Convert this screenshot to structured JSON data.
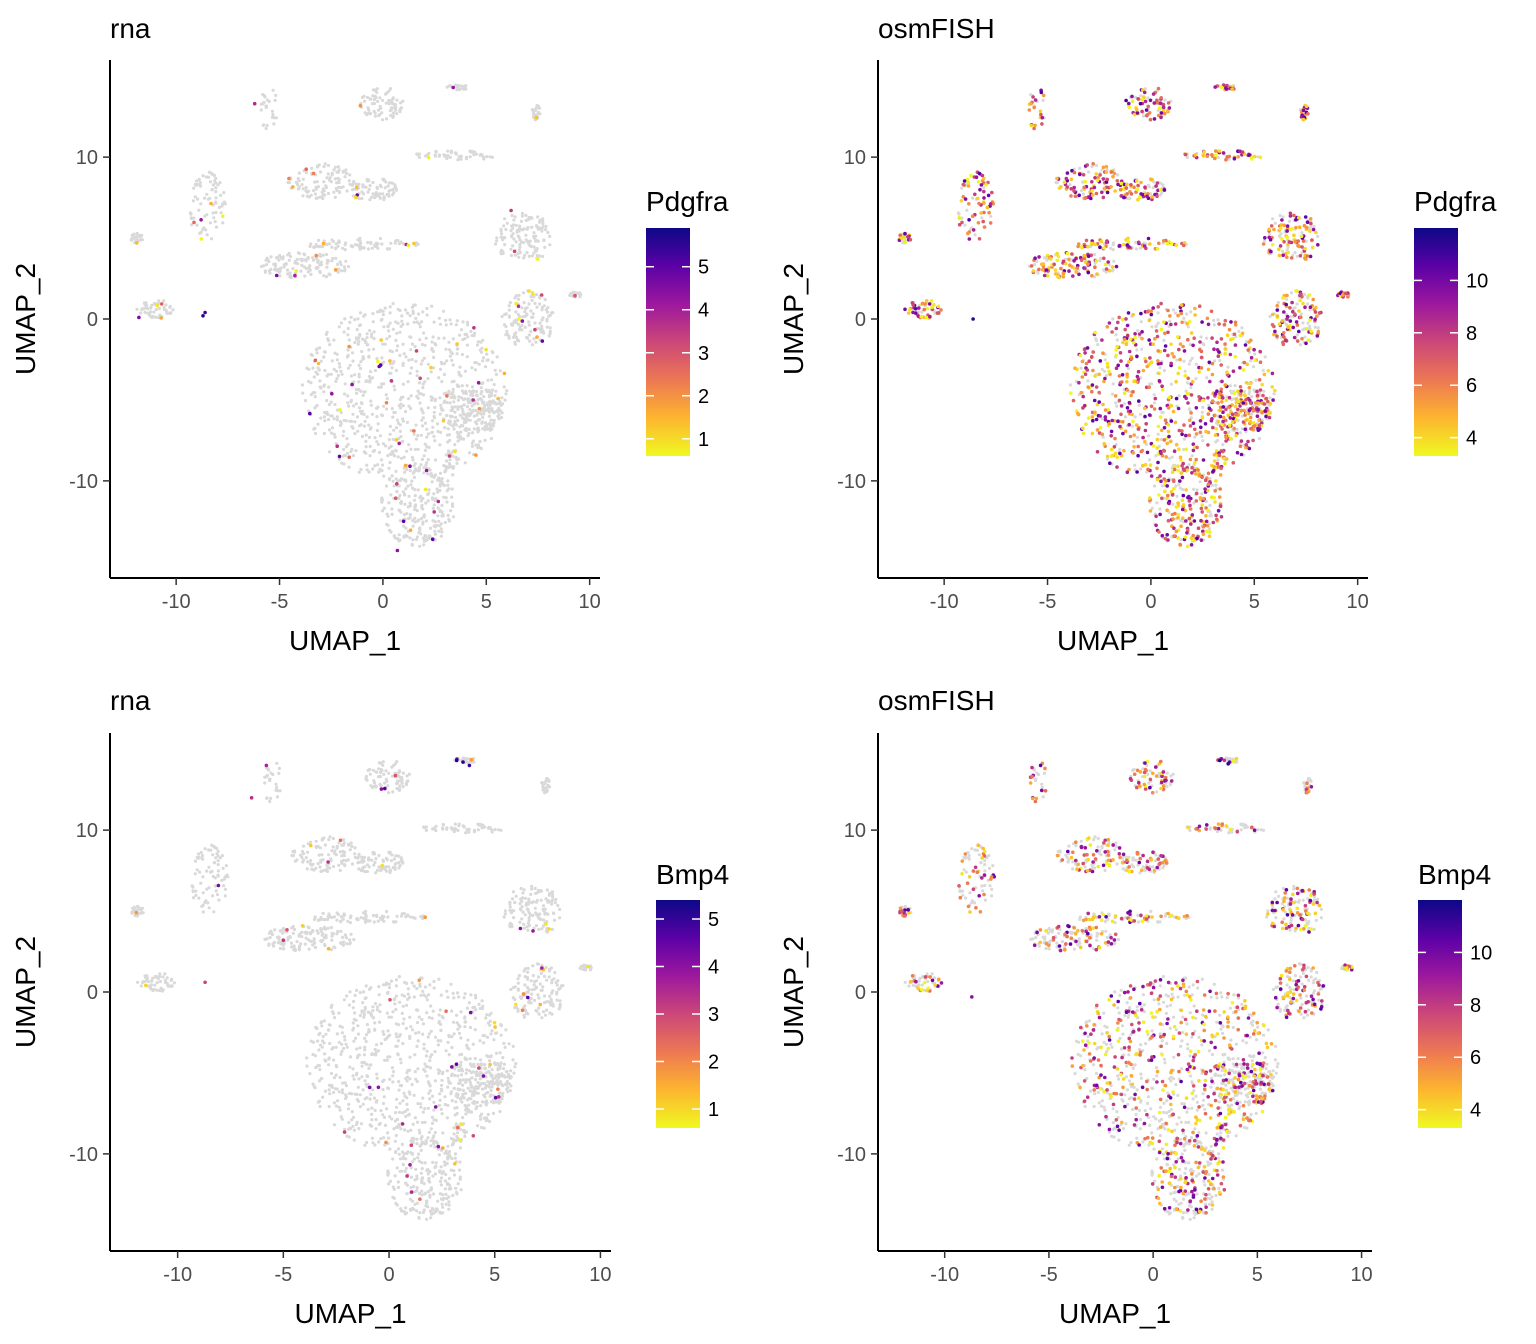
{
  "chart_data": [
    {
      "type": "scatter",
      "title": "rna",
      "xlabel": "UMAP_1",
      "ylabel": "UMAP_2",
      "xlim": [
        -13.2,
        10.5
      ],
      "ylim": [
        -16,
        16
      ],
      "xticks": [
        -10,
        -5,
        0,
        5,
        10
      ],
      "xtick_labels": [
        "-10",
        "-5",
        "0",
        "5",
        "10"
      ],
      "yticks": [
        -10,
        0,
        10
      ],
      "ytick_labels": [
        "-10",
        "0",
        "10"
      ],
      "legend": {
        "title": "Pdgfra",
        "min": 0.6,
        "max": 5.9,
        "ticks": [
          1,
          2,
          3,
          4,
          5
        ],
        "tick_labels": [
          "1",
          "2",
          "3",
          "4",
          "5"
        ],
        "position": "right"
      },
      "expressing_fraction": 0.04,
      "expression_range": [
        0.6,
        5.9
      ],
      "highlights": [
        {
          "x": -8.7,
          "y": 0.2,
          "value": 5.6
        },
        {
          "x": -8.6,
          "y": 0.4,
          "value": 5.3
        },
        {
          "x": 1.0,
          "y": -12.5,
          "value": 5.0
        },
        {
          "x": -6.2,
          "y": 13.3,
          "value": 3.8
        },
        {
          "x": 3.4,
          "y": 14.3,
          "value": 4.2
        },
        {
          "x": -11.8,
          "y": 0.1,
          "value": 4.6
        },
        {
          "x": 0.7,
          "y": -14.3,
          "value": 4.4
        },
        {
          "x": 6.2,
          "y": 6.7,
          "value": 3.5
        }
      ]
    },
    {
      "type": "scatter",
      "title": "osmFISH",
      "xlabel": "UMAP_1",
      "ylabel": "UMAP_2",
      "xlim": [
        -13.2,
        10.5
      ],
      "ylim": [
        -16,
        16
      ],
      "xticks": [
        -10,
        -5,
        0,
        5,
        10
      ],
      "xtick_labels": [
        "-10",
        "-5",
        "0",
        "5",
        "10"
      ],
      "yticks": [
        -10,
        0,
        10
      ],
      "ytick_labels": [
        "-10",
        "0",
        "10"
      ],
      "legend": {
        "title": "Pdgfra",
        "min": 3.3,
        "max": 12,
        "ticks": [
          4,
          6,
          8,
          10
        ],
        "tick_labels": [
          "4",
          "6",
          "8",
          "10"
        ],
        "position": "right"
      },
      "expressing_fraction": 0.72,
      "expression_range": [
        3.3,
        12
      ],
      "highlights": [
        {
          "x": -8.6,
          "y": 0.0,
          "value": 11.5
        },
        {
          "x": -1.2,
          "y": 13.5,
          "value": 11.0
        },
        {
          "x": -5.3,
          "y": 14.0,
          "value": 10.8
        },
        {
          "x": -1.5,
          "y": -8.3,
          "value": 10.5
        },
        {
          "x": 7.5,
          "y": -1.5,
          "value": 10.2
        }
      ]
    },
    {
      "type": "scatter",
      "title": "rna",
      "xlabel": "UMAP_1",
      "ylabel": "UMAP_2",
      "xlim": [
        -13.2,
        10.5
      ],
      "ylim": [
        -16,
        16
      ],
      "xticks": [
        -10,
        -5,
        0,
        5,
        10
      ],
      "xtick_labels": [
        "-10",
        "-5",
        "0",
        "5",
        "10"
      ],
      "yticks": [
        -10,
        0,
        10
      ],
      "ytick_labels": [
        "-10",
        "0",
        "10"
      ],
      "legend": {
        "title": "Bmp4",
        "min": 0.6,
        "max": 5.4,
        "ticks": [
          1,
          2,
          3,
          4,
          5
        ],
        "tick_labels": [
          "1",
          "2",
          "3",
          "4",
          "5"
        ],
        "position": "right"
      },
      "expressing_fraction": 0.03,
      "expression_range": [
        0.6,
        5.4
      ],
      "highlights": [
        {
          "x": 3.2,
          "y": 14.3,
          "value": 5.3
        },
        {
          "x": 3.5,
          "y": 14.2,
          "value": 5.2
        },
        {
          "x": 3.8,
          "y": 14.0,
          "value": 5.0
        },
        {
          "x": -5.8,
          "y": 14.0,
          "value": 3.6
        },
        {
          "x": -6.5,
          "y": 12.0,
          "value": 3.4
        },
        {
          "x": -5.0,
          "y": 3.2,
          "value": 3.2
        },
        {
          "x": -8.7,
          "y": 0.6,
          "value": 3.0
        }
      ]
    },
    {
      "type": "scatter",
      "title": "osmFISH",
      "xlabel": "UMAP_1",
      "ylabel": "UMAP_2",
      "xlim": [
        -13.2,
        10.5
      ],
      "ylim": [
        -16,
        16
      ],
      "xticks": [
        -10,
        -5,
        0,
        5,
        10
      ],
      "xtick_labels": [
        "-10",
        "-5",
        "0",
        "5",
        "10"
      ],
      "yticks": [
        -10,
        0,
        10
      ],
      "ytick_labels": [
        "-10",
        "0",
        "10"
      ],
      "legend": {
        "title": "Bmp4",
        "min": 3.3,
        "max": 12,
        "ticks": [
          4,
          6,
          8,
          10
        ],
        "tick_labels": [
          "4",
          "6",
          "8",
          "10"
        ],
        "position": "right"
      },
      "expressing_fraction": 0.45,
      "expression_range": [
        3.3,
        12
      ],
      "highlights": [
        {
          "x": 3.2,
          "y": 14.3,
          "value": 11.8
        },
        {
          "x": 3.6,
          "y": 14.1,
          "value": 11.5
        },
        {
          "x": -5.4,
          "y": 14.0,
          "value": 10.5
        },
        {
          "x": -8.7,
          "y": -0.3,
          "value": 9.5
        }
      ]
    }
  ],
  "colors": {
    "background_cell": "#d9d9d9",
    "colormap": [
      "#f0f921",
      "#fdb42f",
      "#ed7953",
      "#cc4778",
      "#9c179e",
      "#5c01a6",
      "#0d0887"
    ],
    "axis_line": "#000000",
    "tick_text": "#4d4d4d"
  },
  "clusters": [
    {
      "cx": 1.0,
      "cy": -4.5,
      "rx": 5.0,
      "ry": 5.5,
      "w": 30
    },
    {
      "cx": 4.3,
      "cy": -5.5,
      "rx": 1.6,
      "ry": 1.6,
      "w": 7
    },
    {
      "cx": 1.7,
      "cy": -11.5,
      "rx": 1.8,
      "ry": 2.6,
      "w": 9
    },
    {
      "cx": -3.8,
      "cy": 3.3,
      "rx": 2.2,
      "ry": 0.8,
      "w": 5
    },
    {
      "cx": -1.0,
      "cy": 4.6,
      "rx": 2.8,
      "ry": 0.4,
      "w": 3
    },
    {
      "cx": 6.8,
      "cy": 5.0,
      "rx": 1.4,
      "ry": 1.6,
      "w": 5
    },
    {
      "cx": 7.0,
      "cy": 0.0,
      "rx": 1.3,
      "ry": 1.8,
      "w": 5
    },
    {
      "cx": -3.0,
      "cy": 8.5,
      "rx": 1.6,
      "ry": 1.1,
      "w": 4
    },
    {
      "cx": -0.5,
      "cy": 8.0,
      "rx": 1.2,
      "ry": 0.7,
      "w": 3
    },
    {
      "cx": -8.5,
      "cy": 7.0,
      "rx": 0.9,
      "ry": 2.2,
      "w": 3
    },
    {
      "cx": 0.0,
      "cy": 13.3,
      "rx": 1.1,
      "ry": 1.0,
      "w": 3
    },
    {
      "cx": 3.5,
      "cy": 10.1,
      "rx": 2.0,
      "ry": 0.3,
      "w": 2
    },
    {
      "cx": -11.0,
      "cy": 0.6,
      "rx": 0.9,
      "ry": 0.6,
      "w": 2
    },
    {
      "cx": -5.5,
      "cy": 13.0,
      "rx": 0.5,
      "ry": 1.3,
      "w": 1
    },
    {
      "cx": 3.6,
      "cy": 14.3,
      "rx": 0.5,
      "ry": 0.2,
      "w": 1
    },
    {
      "cx": 3.3,
      "cy": -8.9,
      "rx": 0.4,
      "ry": 0.8,
      "w": 1
    },
    {
      "cx": -11.9,
      "cy": 5.0,
      "rx": 0.3,
      "ry": 0.3,
      "w": 1
    },
    {
      "cx": 9.3,
      "cy": 1.5,
      "rx": 0.3,
      "ry": 0.2,
      "w": 1
    },
    {
      "cx": 7.4,
      "cy": 12.8,
      "rx": 0.2,
      "ry": 0.5,
      "w": 1
    }
  ]
}
